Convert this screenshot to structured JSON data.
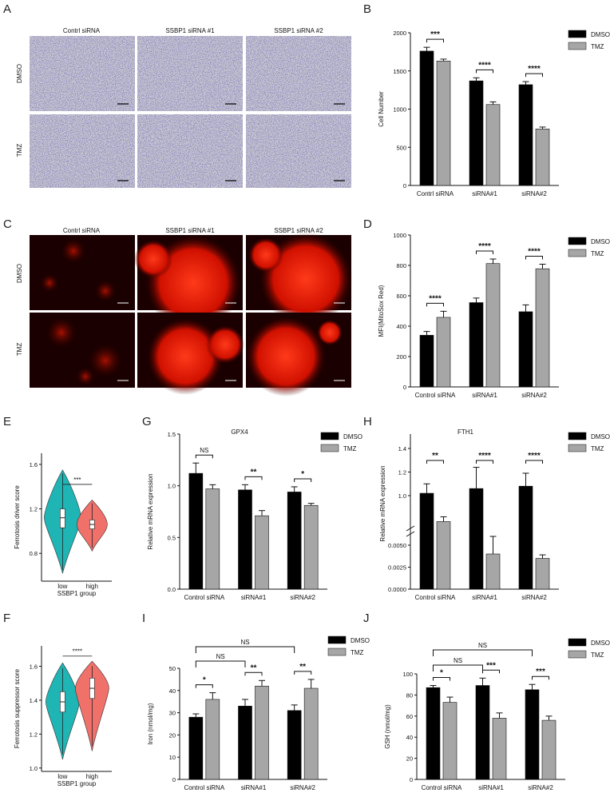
{
  "panel_letters": [
    "A",
    "B",
    "C",
    "D",
    "E",
    "F",
    "G",
    "H",
    "I",
    "J"
  ],
  "colors": {
    "dmso": "#000000",
    "tmz": "#a6a6a6",
    "violin_low": "#1fb5b5",
    "violin_high": "#f0706a",
    "micro_bg": "#c9c9cf",
    "fluor_bg": "#1a0000"
  },
  "micro_A": {
    "columns": [
      "Contrl siRNA",
      "SSBP1 siRNA #1",
      "SSBP1 siRNA #2"
    ],
    "rows": [
      "DMSO",
      "TMZ"
    ]
  },
  "micro_C": {
    "columns": [
      "Contrl siRNA",
      "SSBP1 siRNA #1",
      "SSBP1 siRNA #2"
    ],
    "rows": [
      "DMSO",
      "TMZ"
    ]
  },
  "chart_data": [
    {
      "id": "B",
      "type": "bar",
      "categories": [
        "Contrl siRNA",
        "siRNA#1",
        "siRNA#2"
      ],
      "series": [
        {
          "name": "DMSO",
          "values": [
            1760,
            1370,
            1320
          ],
          "err": [
            50,
            40,
            40
          ]
        },
        {
          "name": "TMZ",
          "values": [
            1630,
            1060,
            740
          ],
          "err": [
            25,
            35,
            25
          ]
        }
      ],
      "ylabel": "Cell Number",
      "ylim": [
        0,
        2000
      ],
      "yticks": [
        0,
        500,
        1000,
        1500,
        2000
      ],
      "sig": [
        {
          "i": 0,
          "label": "***"
        },
        {
          "i": 1,
          "label": "****"
        },
        {
          "i": 2,
          "label": "****"
        }
      ]
    },
    {
      "id": "D",
      "type": "bar",
      "categories": [
        "Control siRNA",
        "siRNA#1",
        "siRNA#2"
      ],
      "series": [
        {
          "name": "DMSO",
          "values": [
            340,
            555,
            495
          ],
          "err": [
            25,
            30,
            45
          ]
        },
        {
          "name": "TMZ",
          "values": [
            458,
            812,
            778
          ],
          "err": [
            40,
            30,
            30
          ]
        }
      ],
      "ylabel": "MFI(MitoSox Red)",
      "ylim": [
        0,
        1000
      ],
      "yticks": [
        0,
        200,
        400,
        600,
        800,
        1000
      ],
      "sig": [
        {
          "i": 0,
          "label": "****"
        },
        {
          "i": 1,
          "label": "****"
        },
        {
          "i": 2,
          "label": "****"
        }
      ]
    },
    {
      "id": "E",
      "type": "violin",
      "groups": [
        "low",
        "high"
      ],
      "xlabel": "SSBP1 group",
      "ylabel": "Ferrotosis driver score",
      "yticks": [
        0.8,
        1.2,
        1.6
      ],
      "ylim": [
        0.55,
        1.7
      ],
      "sig": "***"
    },
    {
      "id": "F",
      "type": "violin",
      "groups": [
        "low",
        "high"
      ],
      "xlabel": "SSBP1 group",
      "ylabel": "Ferrotosis suppressor score",
      "yticks": [
        1.0,
        1.2,
        1.4,
        1.6
      ],
      "ylim": [
        0.98,
        1.72
      ],
      "sig": "****"
    },
    {
      "id": "G",
      "type": "bar",
      "title": "GPX4",
      "categories": [
        "Control siRNA",
        "siRNA#1",
        "siRNA#2"
      ],
      "series": [
        {
          "name": "DMSO",
          "values": [
            1.12,
            0.96,
            0.94
          ],
          "err": [
            0.1,
            0.05,
            0.05
          ]
        },
        {
          "name": "TMZ",
          "values": [
            0.97,
            0.71,
            0.81
          ],
          "err": [
            0.04,
            0.05,
            0.02
          ]
        }
      ],
      "ylabel": "Relative mRNA expression",
      "ylim": [
        0,
        1.5
      ],
      "yticks": [
        "0.0",
        "0.5",
        "1.0",
        "1.5"
      ],
      "sig": [
        {
          "i": 0,
          "label": "NS"
        },
        {
          "i": 1,
          "label": "**"
        },
        {
          "i": 2,
          "label": "*"
        }
      ]
    },
    {
      "id": "H",
      "type": "bar",
      "title": "FTH1",
      "categories": [
        "Control siRNA",
        "siRNA#1",
        "siRNA#2"
      ],
      "series": [
        {
          "name": "DMSO",
          "values": [
            1.02,
            1.06,
            1.08
          ],
          "err": [
            0.08,
            0.18,
            0.11
          ]
        },
        {
          "name": "TMZ",
          "values": [
            0.78,
            0.004,
            0.0035
          ],
          "err": [
            0.04,
            0.002,
            0.0004
          ]
        }
      ],
      "ylabel": "Relative mRNA expression",
      "yticks_lower": [
        "0.0000",
        "0.0025",
        "0.0050"
      ],
      "yticks_upper": [
        "1.0",
        "1.2",
        "1.4"
      ],
      "sig": [
        {
          "i": 0,
          "label": "**"
        },
        {
          "i": 1,
          "label": "****"
        },
        {
          "i": 2,
          "label": "****"
        }
      ]
    },
    {
      "id": "I",
      "type": "bar",
      "categories": [
        "Control siRNA",
        "siRNA#1",
        "siRNA#2"
      ],
      "series": [
        {
          "name": "DMSO",
          "values": [
            28,
            33,
            31
          ],
          "err": [
            1.5,
            3,
            2.5
          ]
        },
        {
          "name": "TMZ",
          "values": [
            36,
            42,
            41
          ],
          "err": [
            3,
            2.5,
            4
          ]
        }
      ],
      "ylabel": "Iron (nmol/mg)",
      "ylim": [
        0,
        50
      ],
      "yticks": [
        0,
        10,
        20,
        30,
        40,
        50
      ],
      "sig": [
        {
          "i": 0,
          "label": "*"
        },
        {
          "i": 1,
          "label": "**"
        },
        {
          "i": 2,
          "label": "**"
        }
      ],
      "across": [
        {
          "label": "NS",
          "to": 1
        },
        {
          "label": "NS",
          "to": 2
        }
      ]
    },
    {
      "id": "J",
      "type": "bar",
      "categories": [
        "Control siRNA",
        "siRNA#1",
        "siRNA#2"
      ],
      "series": [
        {
          "name": "DMSO",
          "values": [
            87,
            89,
            85
          ],
          "err": [
            2,
            7,
            5
          ]
        },
        {
          "name": "TMZ",
          "values": [
            73,
            58,
            56
          ],
          "err": [
            5,
            5,
            4
          ]
        }
      ],
      "ylabel": "GSH (nmol/mg)",
      "ylim": [
        0,
        100
      ],
      "yticks": [
        0,
        20,
        40,
        60,
        80,
        100
      ],
      "sig": [
        {
          "i": 0,
          "label": "*"
        },
        {
          "i": 1,
          "label": "***"
        },
        {
          "i": 2,
          "label": "***"
        }
      ],
      "across": [
        {
          "label": "NS",
          "to": 1
        },
        {
          "label": "NS",
          "to": 2
        }
      ]
    }
  ]
}
